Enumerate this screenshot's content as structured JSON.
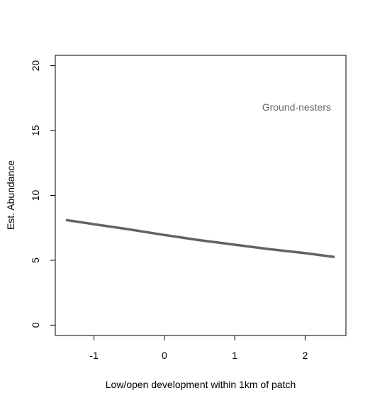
{
  "chart_data": {
    "type": "line",
    "title": "",
    "xlabel": "Low/open development within 1km of patch",
    "ylabel": "Est. Abundance",
    "annotation": "Ground-nesters",
    "xlim": [
      -1.55,
      2.58
    ],
    "ylim": [
      -0.8,
      20.8
    ],
    "x_ticks": [
      -1,
      0,
      1,
      2
    ],
    "x_tick_labels": [
      "-1",
      "0",
      "1",
      "2"
    ],
    "y_ticks": [
      0,
      5,
      10,
      15,
      20
    ],
    "y_tick_labels": [
      "0",
      "5",
      "10",
      "15",
      "20"
    ],
    "grid": false,
    "series": [
      {
        "color": "#636363",
        "x": [
          -1.4,
          -1.0,
          -0.5,
          0.0,
          0.5,
          1.0,
          1.5,
          2.0,
          2.42
        ],
        "y": [
          8.1,
          7.78,
          7.38,
          6.95,
          6.55,
          6.2,
          5.85,
          5.55,
          5.25
        ]
      }
    ]
  }
}
